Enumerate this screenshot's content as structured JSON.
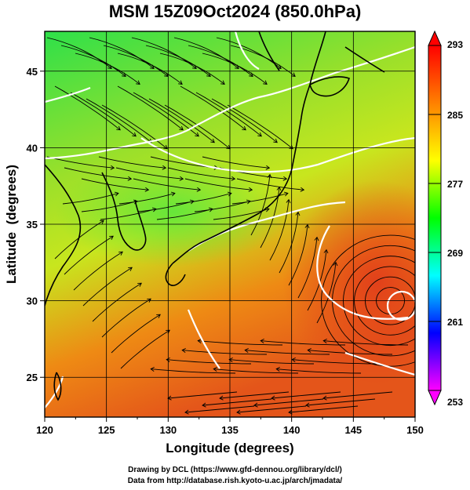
{
  "title": "MSM 15Z09Oct2024 (850.0hPa)",
  "x_axis": {
    "label": "Longitude (degrees)",
    "ticks": [
      "120",
      "125",
      "130",
      "135",
      "140",
      "145",
      "150"
    ],
    "min": 120,
    "max": 150
  },
  "y_axis": {
    "label": "Latitude  (degrees)",
    "ticks": [
      "25",
      "30",
      "35",
      "40",
      "45"
    ],
    "min": 22.4,
    "max": 47.6
  },
  "colorbar": {
    "ticks": [
      "293",
      "285",
      "277",
      "269",
      "261",
      "253"
    ],
    "min": 253,
    "max": 293,
    "colors": [
      "#ff00ff",
      "#0000ff",
      "#00ffff",
      "#00ff00",
      "#ffff00",
      "#ff8000",
      "#ff0000"
    ]
  },
  "field_colors": {
    "north": "#2ee04a",
    "mid": "#9be02a",
    "central": "#c8e61e",
    "south": "#ee8a14",
    "southeast": "#e4551a"
  },
  "credits": [
    "Drawing by DCL (https://www.gfd-dennou.org/library/dcl/)",
    "Data from http://database.rish.kyoto-u.ac.jp/arch/jmadata/"
  ]
}
